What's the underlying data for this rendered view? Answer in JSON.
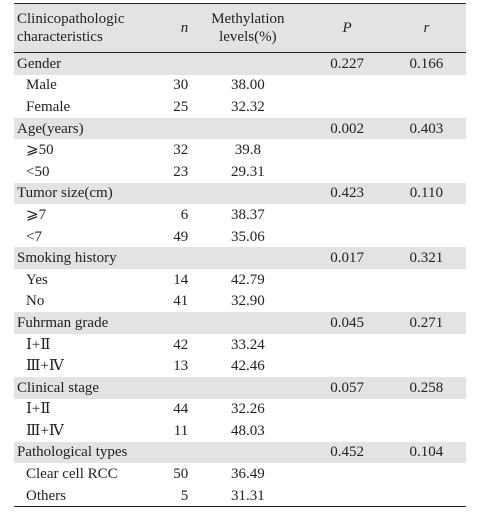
{
  "header": {
    "characteristics_line1": "Clinicopathologic",
    "characteristics_line2": "characteristics",
    "n": "n",
    "methylation_line1": "Methylation",
    "methylation_line2": "levels(%)",
    "p": "P",
    "r": "r"
  },
  "groups": [
    {
      "label": "Gender",
      "p": "0.227",
      "r": "0.166",
      "rows": [
        {
          "label": "Male",
          "n": "30",
          "methylation": "38.00"
        },
        {
          "label": "Female",
          "n": "25",
          "methylation": "32.32"
        }
      ]
    },
    {
      "label": "Age(years)",
      "p": "0.002",
      "r": "0.403",
      "rows": [
        {
          "label": "⩾50",
          "n": "32",
          "methylation": "39.8"
        },
        {
          "label": "<50",
          "n": "23",
          "methylation": "29.31"
        }
      ]
    },
    {
      "label": "Tumor size(cm)",
      "p": "0.423",
      "r": "0.110",
      "rows": [
        {
          "label": "⩾7",
          "n": "6",
          "methylation": "38.37"
        },
        {
          "label": "<7",
          "n": "49",
          "methylation": "35.06"
        }
      ]
    },
    {
      "label": "Smoking history",
      "p": "0.017",
      "r": "0.321",
      "rows": [
        {
          "label": "Yes",
          "n": "14",
          "methylation": "42.79"
        },
        {
          "label": "No",
          "n": "41",
          "methylation": "32.90"
        }
      ]
    },
    {
      "label": "Fuhrman grade",
      "p": "0.045",
      "r": "0.271",
      "rows": [
        {
          "label": "Ⅰ+Ⅱ",
          "n": "42",
          "methylation": "33.24"
        },
        {
          "label": "Ⅲ+Ⅳ",
          "n": "13",
          "methylation": "42.46"
        }
      ]
    },
    {
      "label": "Clinical stage",
      "p": "0.057",
      "r": "0.258",
      "rows": [
        {
          "label": "Ⅰ+Ⅱ",
          "n": "44",
          "methylation": "32.26"
        },
        {
          "label": "Ⅲ+Ⅳ",
          "n": "11",
          "methylation": "48.03"
        }
      ]
    },
    {
      "label": "Pathological types",
      "p": "0.452",
      "r": "0.104",
      "rows": [
        {
          "label": "Clear cell RCC",
          "n": "50",
          "methylation": "36.49"
        },
        {
          "label": "Others",
          "n": "5",
          "methylation": "31.31"
        }
      ]
    }
  ]
}
